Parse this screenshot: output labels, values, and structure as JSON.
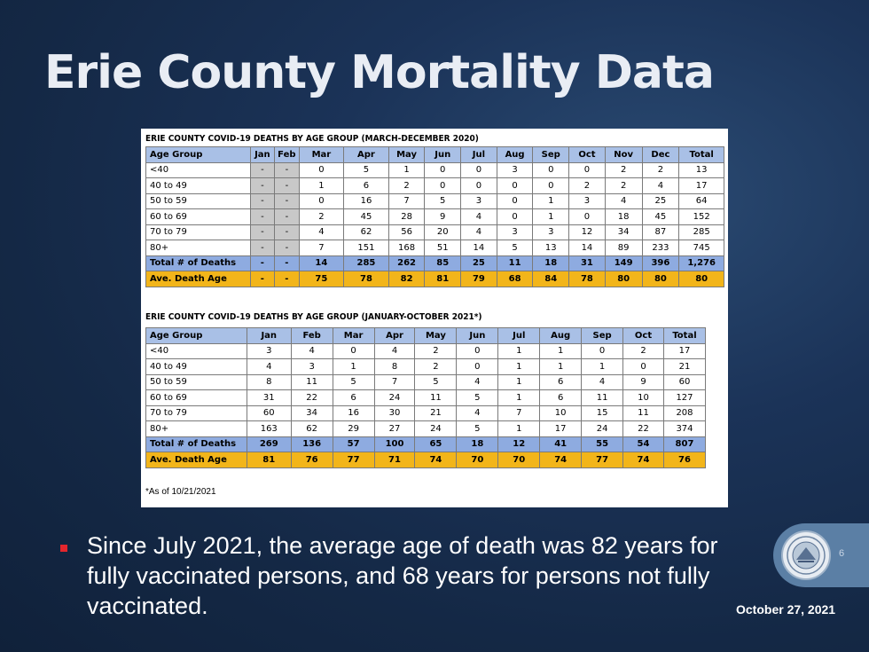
{
  "slide": {
    "title": "Erie County Mortality Data",
    "bullet": "Since July 2021, the average age of death was 82 years for fully vaccinated persons, and 68 years for persons not fully vaccinated.",
    "page_number": "6",
    "date": "October 27, 2021"
  },
  "table2020": {
    "heading": "ERIE COUNTY COVID-19 DEATHS BY AGE GROUP (MARCH-DECEMBER 2020)",
    "headers": [
      "Age Group",
      "Jan",
      "Feb",
      "Mar",
      "Apr",
      "May",
      "Jun",
      "Jul",
      "Aug",
      "Sep",
      "Oct",
      "Nov",
      "Dec",
      "Total"
    ],
    "rows": [
      [
        "<40",
        "-",
        "-",
        "0",
        "5",
        "1",
        "0",
        "0",
        "3",
        "0",
        "0",
        "2",
        "2",
        "13"
      ],
      [
        "40 to 49",
        "-",
        "-",
        "1",
        "6",
        "2",
        "0",
        "0",
        "0",
        "0",
        "2",
        "2",
        "4",
        "17"
      ],
      [
        "50 to 59",
        "-",
        "-",
        "0",
        "16",
        "7",
        "5",
        "3",
        "0",
        "1",
        "3",
        "4",
        "25",
        "64"
      ],
      [
        "60 to 69",
        "-",
        "-",
        "2",
        "45",
        "28",
        "9",
        "4",
        "0",
        "1",
        "0",
        "18",
        "45",
        "152"
      ],
      [
        "70 to 79",
        "-",
        "-",
        "4",
        "62",
        "56",
        "20",
        "4",
        "3",
        "3",
        "12",
        "34",
        "87",
        "285"
      ],
      [
        "80+",
        "-",
        "-",
        "7",
        "151",
        "168",
        "51",
        "14",
        "5",
        "13",
        "14",
        "89",
        "233",
        "745"
      ]
    ],
    "total": [
      "Total # of Deaths",
      "-",
      "-",
      "14",
      "285",
      "262",
      "85",
      "25",
      "11",
      "18",
      "31",
      "149",
      "396",
      "1,276"
    ],
    "average": [
      "Ave. Death Age",
      "-",
      "-",
      "75",
      "78",
      "82",
      "81",
      "79",
      "68",
      "84",
      "78",
      "80",
      "80",
      "80"
    ]
  },
  "table2021": {
    "heading": "ERIE COUNTY COVID-19 DEATHS BY AGE GROUP (JANUARY-OCTOBER 2021*)",
    "headers": [
      "Age Group",
      "Jan",
      "Feb",
      "Mar",
      "Apr",
      "May",
      "Jun",
      "Jul",
      "Aug",
      "Sep",
      "Oct",
      "Total"
    ],
    "rows": [
      [
        "<40",
        "3",
        "4",
        "0",
        "4",
        "2",
        "0",
        "1",
        "1",
        "0",
        "2",
        "17"
      ],
      [
        "40 to 49",
        "4",
        "3",
        "1",
        "8",
        "2",
        "0",
        "1",
        "1",
        "1",
        "0",
        "21"
      ],
      [
        "50 to 59",
        "8",
        "11",
        "5",
        "7",
        "5",
        "4",
        "1",
        "6",
        "4",
        "9",
        "60"
      ],
      [
        "60 to 69",
        "31",
        "22",
        "6",
        "24",
        "11",
        "5",
        "1",
        "6",
        "11",
        "10",
        "127"
      ],
      [
        "70 to 79",
        "60",
        "34",
        "16",
        "30",
        "21",
        "4",
        "7",
        "10",
        "15",
        "11",
        "208"
      ],
      [
        "80+",
        "163",
        "62",
        "29",
        "27",
        "24",
        "5",
        "1",
        "17",
        "24",
        "22",
        "374"
      ]
    ],
    "total": [
      "Total # of Deaths",
      "269",
      "136",
      "57",
      "100",
      "65",
      "18",
      "12",
      "41",
      "55",
      "54",
      "807"
    ],
    "average": [
      "Ave. Death Age",
      "81",
      "76",
      "77",
      "71",
      "74",
      "70",
      "70",
      "74",
      "77",
      "74",
      "76"
    ],
    "footnote": "*As of 10/21/2021"
  },
  "colors": {
    "background": "#1b3358",
    "header_fill": "#a9c0e6",
    "total_fill": "#8eabe0",
    "average_fill": "#f2b51a",
    "dash_cell_fill": "#c8c8c8",
    "bullet": "#e3262d",
    "badge": "#5b7fa5"
  },
  "icons": {
    "seal": "county-seal-icon"
  }
}
